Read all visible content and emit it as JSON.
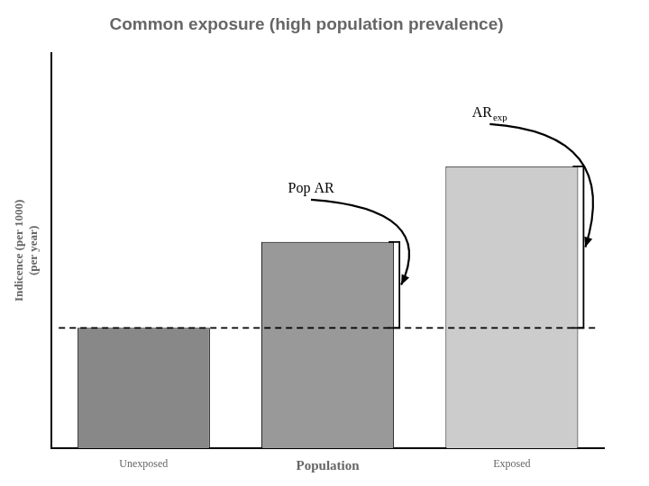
{
  "chart_data": {
    "type": "bar",
    "title": "Common exposure (high population prevalence)",
    "ylabel": [
      "Indicence (per 1000)",
      "(per year)"
    ],
    "categories": [
      "Unexposed",
      "Population",
      "Exposed"
    ],
    "values": [
      3.5,
      6.0,
      8.2
    ],
    "colors": [
      "#888888",
      "#999999",
      "#cccccc"
    ],
    "reference_line": 3.5,
    "annotations": [
      {
        "text": "Pop AR",
        "category": "Population"
      },
      {
        "text": "AR",
        "subscript": "exp",
        "category": "Exposed"
      }
    ],
    "ylim": [
      0,
      11.5
    ],
    "yticks": [],
    "grid": false,
    "tick_labels": "x"
  }
}
